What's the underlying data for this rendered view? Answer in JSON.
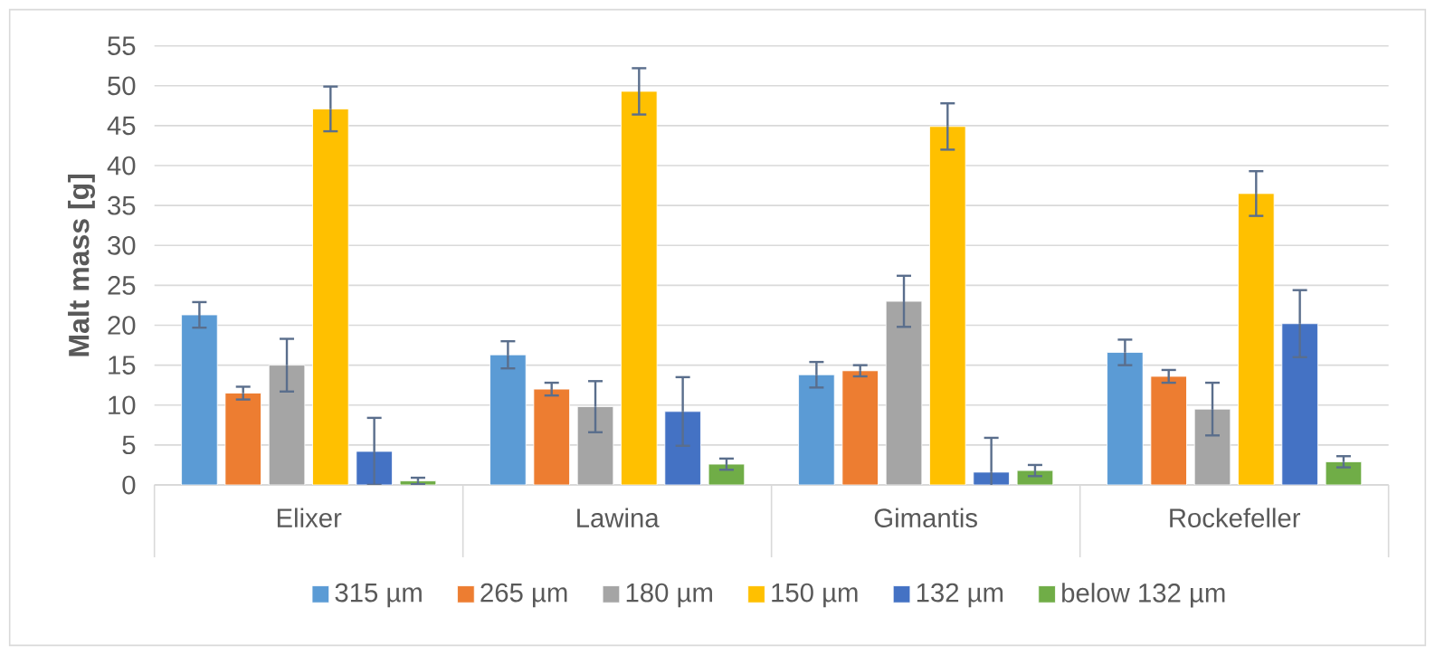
{
  "chart_data": {
    "type": "bar",
    "ylabel": "Malt mass [g]",
    "categories": [
      "Elixer",
      "Lawina",
      "Gimantis",
      "Rockefeller"
    ],
    "series": [
      {
        "name": "315 µm",
        "color": "#5b9bd5",
        "values": [
          21.3,
          16.3,
          13.8,
          16.6
        ],
        "errors": [
          1.6,
          1.7,
          1.6,
          1.6
        ]
      },
      {
        "name": "265 µm",
        "color": "#ed7d31",
        "values": [
          11.5,
          12.0,
          14.3,
          13.6
        ],
        "errors": [
          0.8,
          0.8,
          0.7,
          0.8
        ]
      },
      {
        "name": "180 µm",
        "color": "#a5a5a5",
        "values": [
          15.0,
          9.8,
          23.0,
          9.5
        ],
        "errors": [
          3.3,
          3.2,
          3.2,
          3.3
        ]
      },
      {
        "name": "150 µm",
        "color": "#ffc000",
        "values": [
          47.1,
          49.3,
          44.9,
          36.5
        ],
        "errors": [
          2.8,
          2.9,
          2.9,
          2.8
        ]
      },
      {
        "name": "132 µm",
        "color": "#4472c4",
        "values": [
          4.2,
          9.2,
          1.6,
          20.2
        ],
        "errors": [
          4.2,
          4.3,
          4.3,
          4.2
        ]
      },
      {
        "name": "below 132 µm",
        "color": "#70ad47",
        "values": [
          0.5,
          2.6,
          1.8,
          2.9
        ],
        "errors": [
          0.4,
          0.7,
          0.7,
          0.7
        ]
      }
    ],
    "ylim": [
      0,
      55
    ],
    "yticks": [
      0,
      5,
      10,
      15,
      20,
      25,
      30,
      35,
      40,
      45,
      50,
      55
    ],
    "grid": "y",
    "legend": "bottom"
  }
}
